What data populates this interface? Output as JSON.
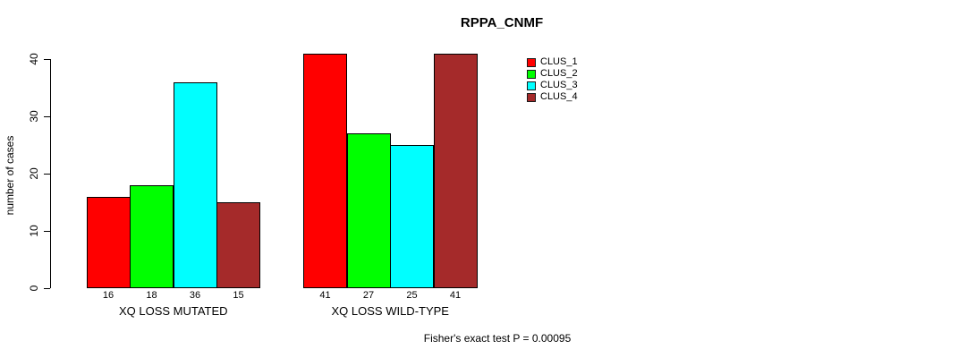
{
  "chart_data": {
    "type": "bar",
    "title": "RPPA_CNMF",
    "ylabel": "number of cases",
    "xlabel": "",
    "ylim": [
      0,
      40
    ],
    "yticks": [
      0,
      10,
      20,
      30,
      40
    ],
    "grid": false,
    "legend_position": "top-right-inside",
    "groups": [
      "XQ LOSS MUTATED",
      "XQ LOSS WILD-TYPE"
    ],
    "series": [
      {
        "name": "CLUS_1",
        "color": "#ff0000",
        "values": [
          16,
          41
        ]
      },
      {
        "name": "CLUS_2",
        "color": "#00ff00",
        "values": [
          18,
          27
        ]
      },
      {
        "name": "CLUS_3",
        "color": "#00ffff",
        "values": [
          36,
          25
        ]
      },
      {
        "name": "CLUS_4",
        "color": "#a52a2a",
        "values": [
          15,
          41
        ]
      }
    ],
    "bar_value_labels": [
      [
        "16",
        "18",
        "36",
        "15"
      ],
      [
        "41",
        "27",
        "25",
        "41"
      ]
    ],
    "annotation": "Fisher's exact test P = 0.00095",
    "axis_color": "#000000",
    "background_color": "#ffffff"
  }
}
